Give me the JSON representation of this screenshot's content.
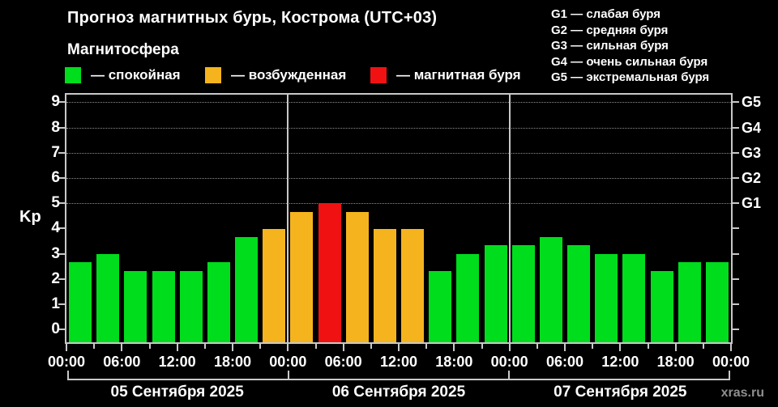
{
  "header": {
    "title": "Прогноз магнитных бурь, Кострома (UTC+03)",
    "subtitle": "Магнитосфера"
  },
  "legend": {
    "items": [
      {
        "key": "quiet",
        "label": "— спокойная",
        "color": "#00dd1c"
      },
      {
        "key": "unsettled",
        "label": "— возбужденная",
        "color": "#f5b41e"
      },
      {
        "key": "storm",
        "label": "— магнитная буря",
        "color": "#f01212"
      }
    ]
  },
  "g_legend": {
    "items": [
      "G1 — слабая буря",
      "G2 — средняя буря",
      "G3 — сильная буря",
      "G4 — очень сильная буря",
      "G5 — экстремальная буря"
    ]
  },
  "chart_data": {
    "type": "bar",
    "title": "Прогноз магнитных бурь, Кострома (UTC+03)",
    "y_axis_title": "Kp",
    "ylim": [
      0,
      9
    ],
    "y_ticks": [
      0,
      1,
      2,
      3,
      4,
      5,
      6,
      7,
      8,
      9
    ],
    "gridlines_at": [
      5,
      6,
      7,
      8,
      9
    ],
    "grid": "dotted horizontal lines at Kp 5-9 only",
    "legend_position": "top",
    "right_axis_labels": [
      {
        "value": 5,
        "label": "G1"
      },
      {
        "value": 6,
        "label": "G2"
      },
      {
        "value": 7,
        "label": "G3"
      },
      {
        "value": 8,
        "label": "G4"
      },
      {
        "value": 9,
        "label": "G5"
      }
    ],
    "x_tick_labels": [
      "00:00",
      "06:00",
      "12:00",
      "18:00",
      "00:00",
      "06:00",
      "12:00",
      "18:00",
      "00:00",
      "06:00",
      "12:00",
      "18:00",
      "00:00"
    ],
    "bar_interval_hours": 3,
    "days": [
      {
        "date": "05 Сентября 2025",
        "values": [
          2.67,
          3.0,
          2.33,
          2.33,
          2.33,
          2.67,
          3.67,
          4.0
        ],
        "statuses": [
          "quiet",
          "quiet",
          "quiet",
          "quiet",
          "quiet",
          "quiet",
          "quiet",
          "unsettled"
        ]
      },
      {
        "date": "06 Сентября 2025",
        "values": [
          4.67,
          5.0,
          4.67,
          4.0,
          4.0,
          2.33,
          3.0,
          3.33
        ],
        "statuses": [
          "unsettled",
          "storm",
          "unsettled",
          "unsettled",
          "unsettled",
          "quiet",
          "quiet",
          "quiet"
        ]
      },
      {
        "date": "07 Сентября 2025",
        "values": [
          3.33,
          3.67,
          3.33,
          3.0,
          3.0,
          2.33,
          2.67,
          2.67
        ],
        "statuses": [
          "quiet",
          "quiet",
          "quiet",
          "quiet",
          "quiet",
          "quiet",
          "quiet",
          "quiet"
        ]
      }
    ]
  },
  "footer": {
    "watermark": "xras.ru"
  }
}
